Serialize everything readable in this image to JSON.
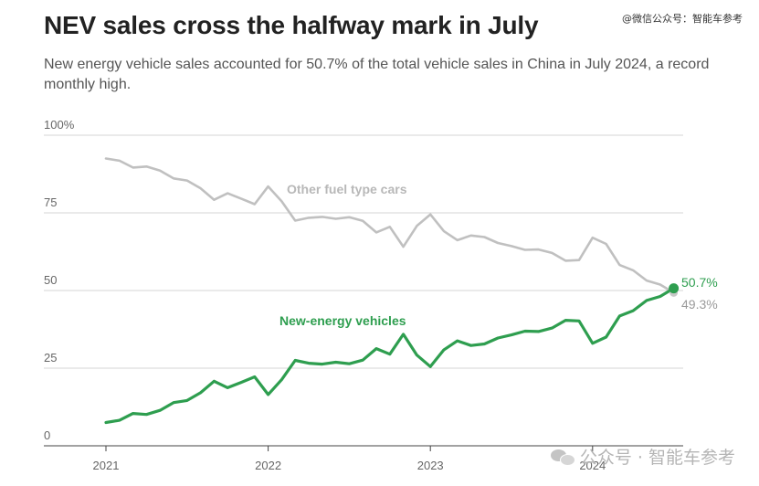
{
  "header": {
    "title": "NEV sales cross the halfway mark in July",
    "subtitle": "New energy vehicle sales accounted for 50.7% of the total vehicle sales in China in July 2024, a record monthly high."
  },
  "watermarks": {
    "top": "@微信公众号：智能车参考",
    "bottom": "公众号 · 智能车参考"
  },
  "chart_data": {
    "type": "line",
    "title": "NEV sales cross the halfway mark in July",
    "subtitle": "New energy vehicle sales accounted for 50.7% of the total vehicle sales in China in July 2024, a record monthly high.",
    "xlabel": "",
    "ylabel": "",
    "x_ticks": [
      "2021",
      "2022",
      "2023",
      "2024"
    ],
    "y_ticks": [
      "0",
      "25",
      "50",
      "75",
      "100%"
    ],
    "ylim": [
      0,
      100
    ],
    "grid": "horizontal",
    "legend": "inline labels",
    "x": [
      "2021-01",
      "2021-02",
      "2021-03",
      "2021-04",
      "2021-05",
      "2021-06",
      "2021-07",
      "2021-08",
      "2021-09",
      "2021-10",
      "2021-11",
      "2021-12",
      "2022-01",
      "2022-02",
      "2022-03",
      "2022-04",
      "2022-05",
      "2022-06",
      "2022-07",
      "2022-08",
      "2022-09",
      "2022-10",
      "2022-11",
      "2022-12",
      "2023-01",
      "2023-02",
      "2023-03",
      "2023-04",
      "2023-05",
      "2023-06",
      "2023-07",
      "2023-08",
      "2023-09",
      "2023-10",
      "2023-11",
      "2023-12",
      "2024-01",
      "2024-02",
      "2024-03",
      "2024-04",
      "2024-05",
      "2024-06",
      "2024-07"
    ],
    "series": [
      {
        "name": "Other fuel type cars",
        "color": "#c0c0c0",
        "values": [
          92.5,
          91.8,
          89.6,
          89.9,
          88.6,
          86.1,
          85.4,
          82.9,
          79.2,
          81.3,
          79.6,
          77.8,
          83.5,
          78.7,
          72.5,
          73.4,
          73.7,
          73.1,
          73.6,
          72.4,
          68.7,
          70.5,
          64.1,
          70.8,
          74.5,
          69.1,
          66.2,
          67.7,
          67.2,
          65.3,
          64.3,
          63.1,
          63.2,
          62.1,
          59.6,
          59.8,
          67.0,
          65.0,
          58.2,
          56.5,
          53.2,
          51.9,
          49.3
        ]
      },
      {
        "name": "New-energy vehicles",
        "color": "#2e9e4f",
        "values": [
          7.5,
          8.2,
          10.4,
          10.1,
          11.4,
          13.9,
          14.6,
          17.1,
          20.8,
          18.7,
          20.4,
          22.2,
          16.5,
          21.3,
          27.5,
          26.6,
          26.3,
          26.9,
          26.4,
          27.6,
          31.3,
          29.5,
          35.9,
          29.2,
          25.5,
          30.9,
          33.8,
          32.3,
          32.8,
          34.7,
          35.7,
          36.9,
          36.8,
          37.9,
          40.4,
          40.2,
          33.0,
          35.0,
          41.8,
          43.5,
          46.8,
          48.1,
          50.7
        ]
      }
    ],
    "end_labels": {
      "nev": "50.7%",
      "other": "49.3%"
    }
  }
}
